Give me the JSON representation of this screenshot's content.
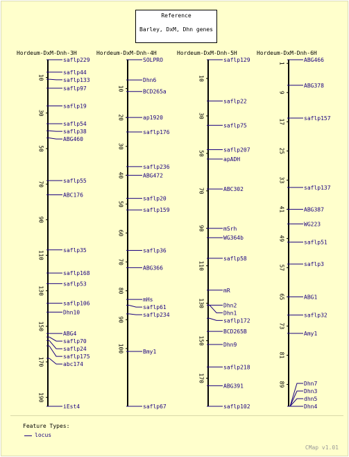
{
  "reference": {
    "title": "Reference",
    "subtitle": "Barley, DxM, Dhn genes"
  },
  "colors": {
    "background": "#ffffcc",
    "axis": "#000000",
    "marker": "#1a0080",
    "title": "#000000"
  },
  "maps": [
    {
      "name": "Hordeum-DxM-Dnh-3H",
      "range": [
        0,
        195
      ],
      "ticks": [
        10,
        30,
        50,
        70,
        90,
        110,
        130,
        150,
        170,
        190
      ],
      "markers": [
        {
          "name": "saflp229",
          "pos": 0
        },
        {
          "name": "saflp44",
          "pos": 7
        },
        {
          "name": "saflp133",
          "pos": 11
        },
        {
          "name": "saflp97",
          "pos": 16
        },
        {
          "name": "saflp19",
          "pos": 26
        },
        {
          "name": "saflp54",
          "pos": 36
        },
        {
          "name": "saflp38",
          "pos": 40
        },
        {
          "name": "ABG460",
          "pos": 44
        },
        {
          "name": "saflp55",
          "pos": 68
        },
        {
          "name": "ABC176",
          "pos": 76
        },
        {
          "name": "saflp35",
          "pos": 107
        },
        {
          "name": "saflp168",
          "pos": 120
        },
        {
          "name": "saflp53",
          "pos": 126
        },
        {
          "name": "saflp106",
          "pos": 137
        },
        {
          "name": "Dhn10",
          "pos": 142
        },
        {
          "name": "ABG4",
          "pos": 154
        },
        {
          "name": "saflp70",
          "pos": 156
        },
        {
          "name": "saflp24",
          "pos": 158
        },
        {
          "name": "saflp175",
          "pos": 161
        },
        {
          "name": "abc174",
          "pos": 168
        },
        {
          "name": "iEst4",
          "pos": 195
        }
      ]
    },
    {
      "name": "Hordeum-DxM-Dnh-4H",
      "range": [
        0,
        120
      ],
      "ticks": [
        10,
        20,
        30,
        40,
        50,
        60,
        70,
        80,
        90,
        100
      ],
      "markers": [
        {
          "name": "SOLPRO",
          "pos": 0
        },
        {
          "name": "Dhn6",
          "pos": 7
        },
        {
          "name": "BCD265a",
          "pos": 11
        },
        {
          "name": "ap1920",
          "pos": 20
        },
        {
          "name": "saflp176",
          "pos": 25
        },
        {
          "name": "saflp236",
          "pos": 37
        },
        {
          "name": "ABG472",
          "pos": 40
        },
        {
          "name": "saflp20",
          "pos": 48
        },
        {
          "name": "saflp159",
          "pos": 52
        },
        {
          "name": "saflp36",
          "pos": 66
        },
        {
          "name": "ABG366",
          "pos": 72
        },
        {
          "name": "mHs",
          "pos": 83
        },
        {
          "name": "saflp61",
          "pos": 85
        },
        {
          "name": "saflp234",
          "pos": 88
        },
        {
          "name": "Bmy1",
          "pos": 101
        },
        {
          "name": "saflp67",
          "pos": 120
        }
      ]
    },
    {
      "name": "Hordeum-DxM-Dnh-5H",
      "range": [
        0,
        185
      ],
      "ticks": [
        10,
        30,
        50,
        70,
        90,
        110,
        130,
        150,
        170
      ],
      "markers": [
        {
          "name": "saflp129",
          "pos": 0
        },
        {
          "name": "saflp22",
          "pos": 22
        },
        {
          "name": "saflp75",
          "pos": 35
        },
        {
          "name": "saflp207",
          "pos": 48
        },
        {
          "name": "apADH",
          "pos": 53
        },
        {
          "name": "ABC302",
          "pos": 69
        },
        {
          "name": "mSrh",
          "pos": 90
        },
        {
          "name": "WG364b",
          "pos": 95
        },
        {
          "name": "saflp58",
          "pos": 106
        },
        {
          "name": "mR",
          "pos": 123
        },
        {
          "name": "Dhn2",
          "pos": 131
        },
        {
          "name": "Dhn1",
          "pos": 131
        },
        {
          "name": "saflp172",
          "pos": 138
        },
        {
          "name": "BCD265B",
          "pos": 145
        },
        {
          "name": "Dhn9",
          "pos": 152
        },
        {
          "name": "saflp218",
          "pos": 164
        },
        {
          "name": "ABG391",
          "pos": 174
        },
        {
          "name": "saflp102",
          "pos": 185
        }
      ]
    },
    {
      "name": "Hordeum-DxM-Dnh-6H",
      "range": [
        0,
        95
      ],
      "ticks": [
        1,
        9,
        17,
        25,
        33,
        41,
        49,
        57,
        65,
        73,
        81,
        89
      ],
      "markers": [
        {
          "name": "ABG466",
          "pos": 0
        },
        {
          "name": "ABG378",
          "pos": 7
        },
        {
          "name": "saflp157",
          "pos": 16
        },
        {
          "name": "saflp137",
          "pos": 35
        },
        {
          "name": "ABG387",
          "pos": 41
        },
        {
          "name": "WG223",
          "pos": 45
        },
        {
          "name": "saflp51",
          "pos": 50
        },
        {
          "name": "saflp3",
          "pos": 56
        },
        {
          "name": "ABG1",
          "pos": 65
        },
        {
          "name": "saflp32",
          "pos": 70
        },
        {
          "name": "Amy1",
          "pos": 75
        },
        {
          "name": "Dhn7",
          "pos": 95
        },
        {
          "name": "Dhn3",
          "pos": 95
        },
        {
          "name": "dhn5",
          "pos": 95
        },
        {
          "name": "Dhn4",
          "pos": 95
        }
      ]
    }
  ],
  "legend": {
    "title": "Feature Types:",
    "item_label": "locus"
  },
  "footer": "CMap v1.01"
}
